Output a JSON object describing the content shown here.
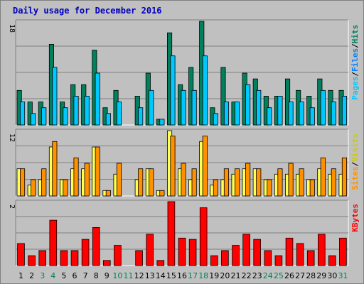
{
  "title": "Daily usage for December 2016",
  "colors": {
    "title": "#0000bb",
    "hits": "#00805c",
    "files": "#00c8ff",
    "pages": "#00c8ff",
    "visits": "#ffff50",
    "sites": "#ff9000",
    "kbytes": "#ff0000",
    "weekend_label": "#00805c",
    "weekday_label": "#000000"
  },
  "chart_data": [
    {
      "type": "bar",
      "panel": "hits-files-pages",
      "scale_label": "18",
      "ylim": [
        0,
        18
      ],
      "side_labels": [
        {
          "text": "Hits",
          "color": "#00805c"
        },
        {
          "text": "/",
          "color": "#000000"
        },
        {
          "text": "Files",
          "color": "#0080ff"
        },
        {
          "text": "/",
          "color": "#000000"
        },
        {
          "text": "Pages",
          "color": "#00c8ff"
        }
      ],
      "categories": [
        "1",
        "2",
        "3",
        "4",
        "5",
        "6",
        "7",
        "8",
        "9",
        "10",
        "11",
        "12",
        "13",
        "14",
        "15",
        "16",
        "17",
        "18",
        "19",
        "20",
        "21",
        "22",
        "23",
        "24",
        "25",
        "26",
        "27",
        "28",
        "29",
        "30",
        "31"
      ],
      "series": [
        {
          "name": "Hits",
          "color": "#00805c",
          "values": [
            6,
            4,
            4,
            14,
            4,
            7,
            7,
            13,
            3,
            6,
            0,
            5,
            9,
            1,
            16,
            7,
            10,
            18,
            3,
            10,
            4,
            9,
            8,
            5,
            5,
            8,
            6,
            5,
            8,
            6,
            6
          ]
        },
        {
          "name": "Files",
          "color": "#00c8ff",
          "values": [
            4,
            2,
            3,
            10,
            3,
            5,
            5,
            9,
            2,
            4,
            0,
            3,
            6,
            1,
            12,
            6,
            6,
            12,
            2,
            4,
            4,
            7,
            6,
            3,
            5,
            4,
            4,
            3,
            6,
            4,
            5
          ]
        }
      ]
    },
    {
      "type": "bar",
      "panel": "visits-sites",
      "scale_label": "12",
      "ylim": [
        0,
        12
      ],
      "side_labels": [
        {
          "text": "Visits",
          "color": "#cccc00"
        },
        {
          "text": "/",
          "color": "#000000"
        },
        {
          "text": "Sites",
          "color": "#ff9000"
        }
      ],
      "categories": [
        "1",
        "2",
        "3",
        "4",
        "5",
        "6",
        "7",
        "8",
        "9",
        "10",
        "11",
        "12",
        "13",
        "14",
        "15",
        "16",
        "17",
        "18",
        "19",
        "20",
        "21",
        "22",
        "23",
        "24",
        "25",
        "26",
        "27",
        "28",
        "29",
        "30",
        "31"
      ],
      "series": [
        {
          "name": "Visits",
          "color": "#ffff50",
          "values": [
            5,
            2,
            3,
            9,
            3,
            5,
            5,
            9,
            1,
            4,
            0,
            3,
            5,
            1,
            12,
            5,
            3,
            10,
            2,
            3,
            4,
            5,
            5,
            3,
            4,
            4,
            4,
            3,
            5,
            4,
            4
          ]
        },
        {
          "name": "Sites",
          "color": "#ff9000",
          "values": [
            5,
            3,
            5,
            10,
            3,
            7,
            6,
            9,
            1,
            6,
            0,
            5,
            5,
            1,
            11,
            6,
            5,
            11,
            3,
            5,
            5,
            6,
            5,
            3,
            5,
            6,
            5,
            3,
            7,
            5,
            7
          ]
        }
      ]
    },
    {
      "type": "bar",
      "panel": "kbytes",
      "scale_label": "2",
      "ylim": [
        0,
        2
      ],
      "side_labels": [
        {
          "text": "KBytes",
          "color": "#ff0000"
        }
      ],
      "categories": [
        "1",
        "2",
        "3",
        "4",
        "5",
        "6",
        "7",
        "8",
        "9",
        "10",
        "11",
        "12",
        "13",
        "14",
        "15",
        "16",
        "17",
        "18",
        "19",
        "20",
        "21",
        "22",
        "23",
        "24",
        "25",
        "26",
        "27",
        "28",
        "29",
        "30",
        "31"
      ],
      "series": [
        {
          "name": "KBytes",
          "color": "#ff0000",
          "values": [
            0.69,
            0.31,
            0.47,
            1.42,
            0.47,
            0.47,
            0.82,
            1.19,
            0.16,
            0.63,
            0,
            0.47,
            0.98,
            0.16,
            2.0,
            0.86,
            0.82,
            1.81,
            0.31,
            0.47,
            0.63,
            0.98,
            0.82,
            0.47,
            0.31,
            0.86,
            0.69,
            0.47,
            0.98,
            0.31,
            0.86
          ]
        }
      ]
    }
  ],
  "x_labels": [
    {
      "text": "1",
      "weekend": false
    },
    {
      "text": "2",
      "weekend": false
    },
    {
      "text": "3",
      "weekend": true
    },
    {
      "text": "4",
      "weekend": true
    },
    {
      "text": "5",
      "weekend": false
    },
    {
      "text": "6",
      "weekend": false
    },
    {
      "text": "7",
      "weekend": false
    },
    {
      "text": "8",
      "weekend": false
    },
    {
      "text": "9",
      "weekend": false
    },
    {
      "text": "10",
      "weekend": true
    },
    {
      "text": "11",
      "weekend": true
    },
    {
      "text": "12",
      "weekend": false
    },
    {
      "text": "13",
      "weekend": false
    },
    {
      "text": "14",
      "weekend": false
    },
    {
      "text": "15",
      "weekend": false
    },
    {
      "text": "16",
      "weekend": false
    },
    {
      "text": "17",
      "weekend": true
    },
    {
      "text": "18",
      "weekend": true
    },
    {
      "text": "19",
      "weekend": false
    },
    {
      "text": "20",
      "weekend": false
    },
    {
      "text": "21",
      "weekend": false
    },
    {
      "text": "22",
      "weekend": false
    },
    {
      "text": "23",
      "weekend": false
    },
    {
      "text": "24",
      "weekend": true
    },
    {
      "text": "25",
      "weekend": true
    },
    {
      "text": "26",
      "weekend": false
    },
    {
      "text": "27",
      "weekend": false
    },
    {
      "text": "28",
      "weekend": false
    },
    {
      "text": "29",
      "weekend": false
    },
    {
      "text": "30",
      "weekend": false
    },
    {
      "text": "31",
      "weekend": true
    }
  ]
}
